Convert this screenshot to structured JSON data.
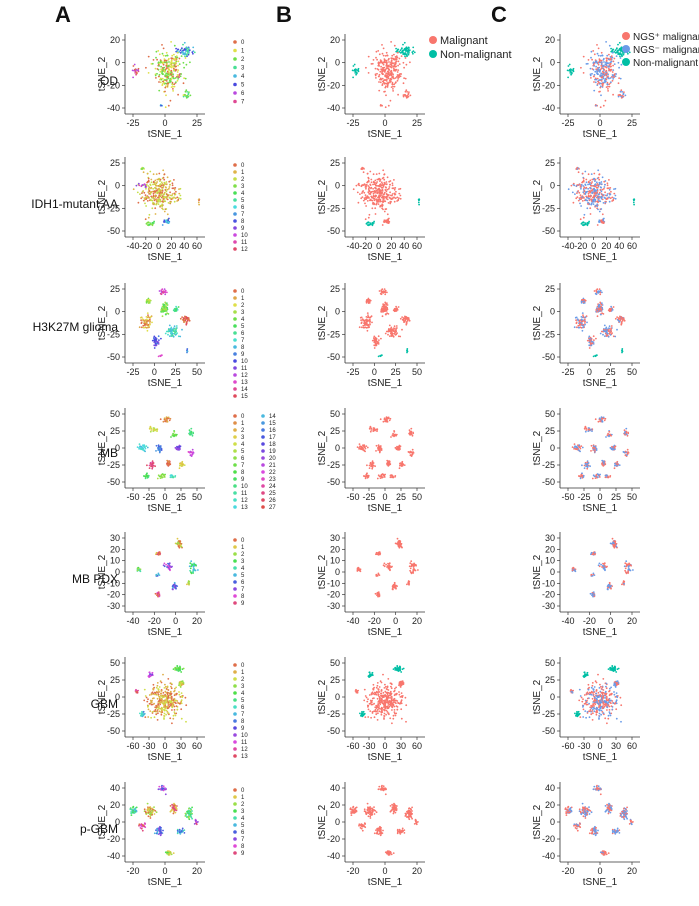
{
  "panel_letters": [
    "A",
    "B",
    "C"
  ],
  "axis_labels": {
    "x": "tSNE_1",
    "y": "tSNE_2"
  },
  "panel_b_legend": {
    "items": [
      "Malignant",
      "Non-malignant"
    ],
    "colors": [
      "#F8766D",
      "#00BFA5"
    ]
  },
  "panel_c_legend": {
    "items": [
      "NGS⁺ malignant",
      "NGS⁻ malignant",
      "Non-malignant"
    ],
    "colors": [
      "#F8766D",
      "#6A9BE8",
      "#00BFA5"
    ]
  },
  "chart_data": [
    {
      "type": "scatter",
      "row_label": "OD",
      "xticks": [
        "-25",
        "0",
        "25"
      ],
      "yticks": [
        "20",
        "0",
        "-20",
        "-40"
      ],
      "xlim": [
        -42,
        42
      ],
      "ylim": [
        -45,
        30
      ],
      "cluster_labels": [
        "0",
        "1",
        "2",
        "3",
        "4",
        "5",
        "6",
        "7"
      ]
    },
    {
      "type": "scatter",
      "row_label": "IDH1-mutant  AA",
      "xticks": [
        "-40",
        "-20",
        "0",
        "20",
        "40",
        "60"
      ],
      "yticks": [
        "25",
        "0",
        "-25",
        "-50"
      ],
      "xlim": [
        -40,
        60
      ],
      "ylim": [
        -50,
        40
      ],
      "cluster_labels": [
        "0",
        "1",
        "2",
        "3",
        "4",
        "5",
        "6",
        "7",
        "8",
        "9",
        "10",
        "11",
        "12"
      ]
    },
    {
      "type": "scatter",
      "row_label": "H3K27M glioma",
      "xticks": [
        "-25",
        "0",
        "25",
        "50"
      ],
      "yticks": [
        "25",
        "0",
        "-25",
        "-50"
      ],
      "xlim": [
        -45,
        52
      ],
      "ylim": [
        -50,
        45
      ],
      "cluster_labels": [
        "0",
        "1",
        "2",
        "3",
        "4",
        "5",
        "6",
        "7",
        "8",
        "9",
        "10",
        "11",
        "12",
        "13",
        "14",
        "15"
      ]
    },
    {
      "type": "scatter",
      "row_label": "MB",
      "xticks": [
        "-50",
        "-25",
        "0",
        "25",
        "50"
      ],
      "yticks": [
        "50",
        "25",
        "0",
        "-25",
        "-50"
      ],
      "xlim": [
        -50,
        50
      ],
      "ylim": [
        -55,
        55
      ],
      "cluster_labels": [
        "0",
        "1",
        "2",
        "3",
        "4",
        "5",
        "6",
        "7",
        "8",
        "9",
        "10",
        "11",
        "12",
        "13",
        "14",
        "15",
        "16",
        "17",
        "18",
        "19",
        "20",
        "21",
        "22",
        "23",
        "24",
        "25",
        "26",
        "27"
      ]
    },
    {
      "type": "scatter",
      "row_label": "MB  PDX",
      "xticks": [
        "-40",
        "-20",
        "0",
        "20"
      ],
      "yticks": [
        "30",
        "20",
        "10",
        "0",
        "-10",
        "-20",
        "-30"
      ],
      "xlim": [
        -40,
        33
      ],
      "ylim": [
        -32,
        30
      ],
      "cluster_labels": [
        "0",
        "1",
        "2",
        "3",
        "4",
        "5",
        "6",
        "7",
        "8",
        "9"
      ]
    },
    {
      "type": "scatter",
      "row_label": "GBM",
      "xticks": [
        "-60",
        "-30",
        "0",
        "30",
        "60"
      ],
      "yticks": [
        "50",
        "25",
        "0",
        "-25",
        "-50"
      ],
      "xlim": [
        -60,
        60
      ],
      "ylim": [
        -55,
        55
      ],
      "cluster_labels": [
        "0",
        "1",
        "2",
        "3",
        "4",
        "5",
        "6",
        "7",
        "8",
        "9",
        "10",
        "11",
        "12",
        "13"
      ]
    },
    {
      "type": "scatter",
      "row_label": "p-GBM",
      "xticks": [
        "-20",
        "0",
        "20"
      ],
      "yticks": [
        "40",
        "20",
        "0",
        "-20",
        "-40"
      ],
      "xlim": [
        -38,
        38
      ],
      "ylim": [
        -48,
        45
      ],
      "cluster_labels": [
        "0",
        "1",
        "2",
        "3",
        "4",
        "5",
        "6",
        "7",
        "8",
        "9"
      ]
    }
  ]
}
